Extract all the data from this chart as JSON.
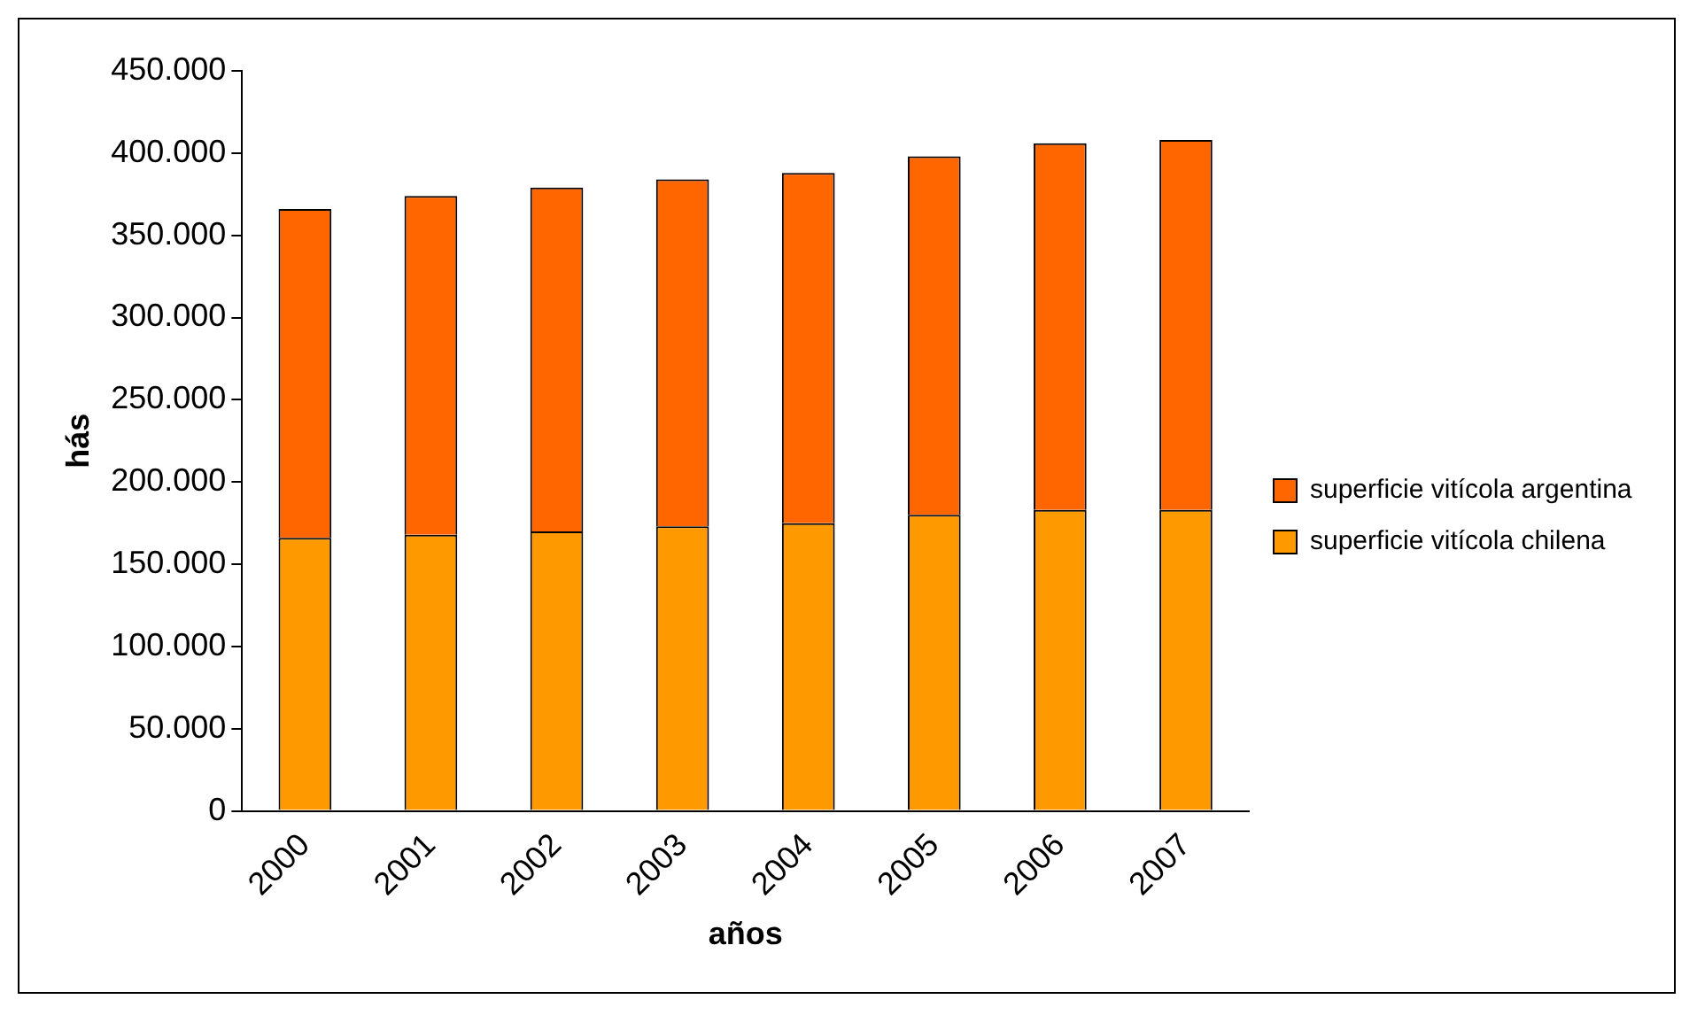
{
  "chart_data": {
    "type": "bar",
    "stacked": true,
    "xlabel": "años",
    "ylabel": "hás",
    "categories": [
      "2000",
      "2001",
      "2002",
      "2003",
      "2004",
      "2005",
      "2006",
      "2007"
    ],
    "series": [
      {
        "name": "superficie vitícola chilena",
        "color": "#ff9900",
        "values": [
          166000,
          168000,
          170000,
          173000,
          175000,
          180000,
          183000,
          183000
        ]
      },
      {
        "name": "superficie vitícola argentina",
        "color": "#ff6600",
        "values": [
          200000,
          206000,
          209000,
          211000,
          213000,
          218000,
          223000,
          225000
        ]
      }
    ],
    "ylim": [
      0,
      450000
    ],
    "yticks": [
      {
        "value": 0,
        "label": "0"
      },
      {
        "value": 50000,
        "label": "50.000"
      },
      {
        "value": 100000,
        "label": "100.000"
      },
      {
        "value": 150000,
        "label": "150.000"
      },
      {
        "value": 200000,
        "label": "200.000"
      },
      {
        "value": 250000,
        "label": "250.000"
      },
      {
        "value": 300000,
        "label": "300.000"
      },
      {
        "value": 350000,
        "label": "350.000"
      },
      {
        "value": 400000,
        "label": "400.000"
      },
      {
        "value": 450000,
        "label": "450.000"
      }
    ],
    "grid": false,
    "legend": "right"
  }
}
